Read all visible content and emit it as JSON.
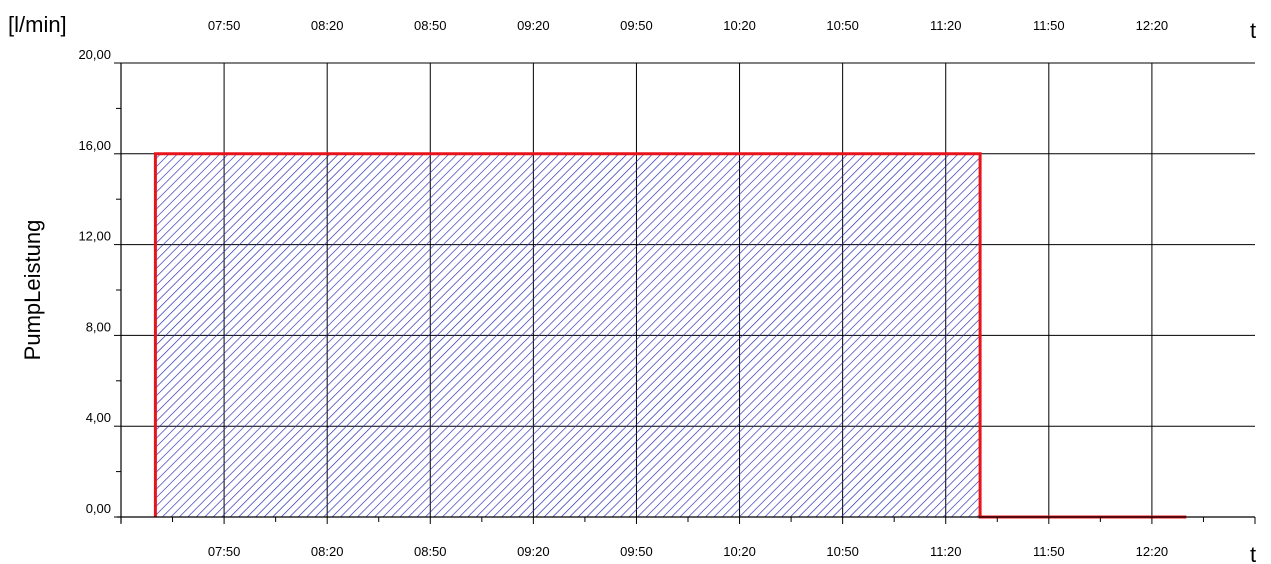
{
  "chart_data": {
    "type": "area",
    "ylabel": "PumpLeistung",
    "yunit": "[l/min]",
    "xunit": "t",
    "ylim": [
      0,
      20
    ],
    "yticks": [
      {
        "value": 0,
        "label": "0,00"
      },
      {
        "value": 4,
        "label": "4,00"
      },
      {
        "value": 8,
        "label": "8,00"
      },
      {
        "value": 12,
        "label": "12,00"
      },
      {
        "value": 16,
        "label": "16,00"
      },
      {
        "value": 20,
        "label": "20,00"
      }
    ],
    "xlim": [
      "07:20",
      "12:50"
    ],
    "xticks": [
      "07:50",
      "08:20",
      "08:50",
      "09:20",
      "09:50",
      "10:20",
      "10:50",
      "11:20",
      "11:50",
      "12:20"
    ],
    "grid": true,
    "series": [
      {
        "x": [
          "07:30",
          "07:30",
          "11:30",
          "11:30",
          "12:30"
        ],
        "y": [
          0,
          16,
          16,
          0,
          0
        ],
        "line_color": "#e8141c",
        "fill_color": "#1e28b4",
        "fill_style": "hatched"
      }
    ]
  }
}
